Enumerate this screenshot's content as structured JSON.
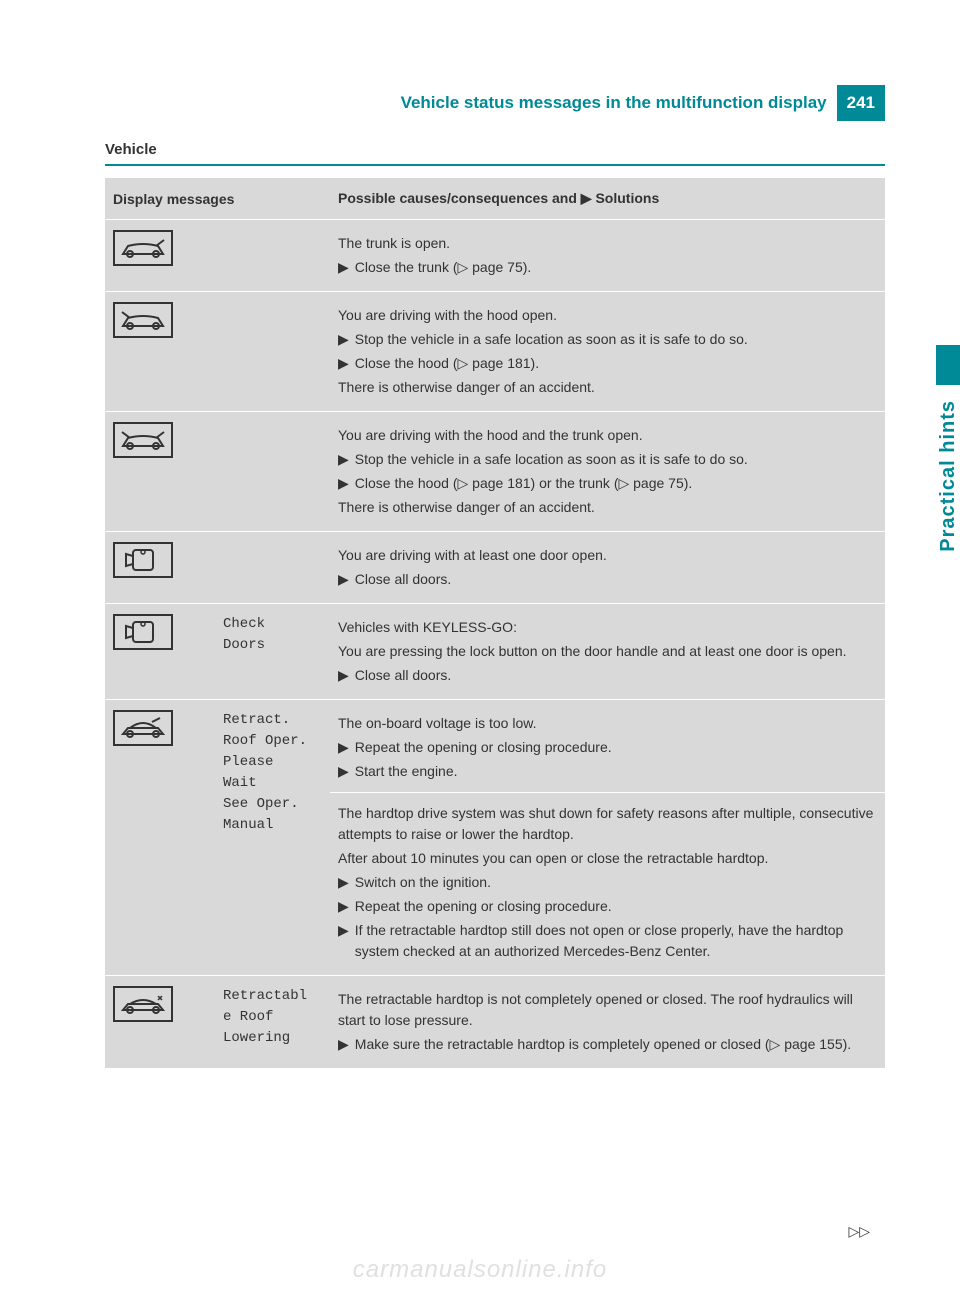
{
  "header": {
    "title": "Vehicle status messages in the multifunction display",
    "page_number": "241"
  },
  "section_title": "Vehicle",
  "table": {
    "header_left": "Display messages",
    "header_right_prefix": "Possible causes/consequences and ",
    "header_right_suffix": " Solutions"
  },
  "rows": [
    {
      "icon": "trunk-open",
      "msg": "",
      "blocks": [
        {
          "lines": [
            {
              "t": "text",
              "v": "The trunk is open."
            },
            {
              "t": "action",
              "v": "Close the trunk (▷ page 75)."
            }
          ]
        }
      ]
    },
    {
      "icon": "hood-open",
      "msg": "",
      "blocks": [
        {
          "lines": [
            {
              "t": "text",
              "v": "You are driving with the hood open."
            },
            {
              "t": "action",
              "v": "Stop the vehicle in a safe location as soon as it is safe to do so."
            },
            {
              "t": "action",
              "v": "Close the hood (▷ page 181)."
            },
            {
              "t": "text",
              "v": "There is otherwise danger of an accident."
            }
          ]
        }
      ]
    },
    {
      "icon": "hood-trunk-open",
      "msg": "",
      "blocks": [
        {
          "lines": [
            {
              "t": "text",
              "v": "You are driving with the hood and the trunk open."
            },
            {
              "t": "action",
              "v": "Stop the vehicle in a safe location as soon as it is safe to do so."
            },
            {
              "t": "action",
              "v": "Close the hood (▷ page 181) or the trunk (▷ page 75)."
            },
            {
              "t": "text",
              "v": "There is otherwise danger of an accident."
            }
          ]
        }
      ]
    },
    {
      "icon": "door-open",
      "msg": "",
      "blocks": [
        {
          "lines": [
            {
              "t": "text",
              "v": "You are driving with at least one door open."
            },
            {
              "t": "action",
              "v": "Close all doors."
            }
          ]
        }
      ]
    },
    {
      "icon": "door-open",
      "msg": "Check\nDoors",
      "blocks": [
        {
          "lines": [
            {
              "t": "text",
              "v": "Vehicles with KEYLESS-GO:"
            },
            {
              "t": "text",
              "v": "You are pressing the lock button on the door handle and at least one door is open."
            },
            {
              "t": "action",
              "v": "Close all doors."
            }
          ]
        }
      ]
    },
    {
      "icon": "roof-retract",
      "msg": "Retract.\nRoof Oper.\nPlease\nWait\nSee Oper.\nManual",
      "blocks": [
        {
          "lines": [
            {
              "t": "text",
              "v": "The on-board voltage is too low."
            },
            {
              "t": "action",
              "v": "Repeat the opening or closing procedure."
            },
            {
              "t": "action",
              "v": "Start the engine."
            }
          ]
        },
        {
          "lines": [
            {
              "t": "text",
              "v": "The hardtop drive system was shut down for safety reasons after multiple, consecutive attempts to raise or lower the hardtop."
            },
            {
              "t": "text",
              "v": "After about 10 minutes you can open or close the retractable hardtop."
            },
            {
              "t": "action",
              "v": "Switch on the ignition."
            },
            {
              "t": "action",
              "v": "Repeat the opening or closing procedure."
            },
            {
              "t": "action",
              "v": "If the retractable hardtop still does not open or close properly, have the hardtop system checked at an authorized Mercedes-Benz Center."
            }
          ]
        }
      ]
    },
    {
      "icon": "roof-lowering",
      "msg": "Retractabl\ne Roof\nLowering",
      "blocks": [
        {
          "lines": [
            {
              "t": "text",
              "v": "The retractable hardtop is not completely opened or closed. The roof hydraulics will start to lose pressure."
            },
            {
              "t": "action",
              "v": "Make sure the retractable hardtop is completely opened or closed (▷ page 155)."
            }
          ]
        }
      ]
    }
  ],
  "side_tab": "Practical hints",
  "continue_marker": "▷▷",
  "watermark": "carmanualsonline.info",
  "colors": {
    "accent": "#008996",
    "table_bg": "#d9d9d9",
    "text": "#333333",
    "watermark": "#e0e0e0"
  }
}
